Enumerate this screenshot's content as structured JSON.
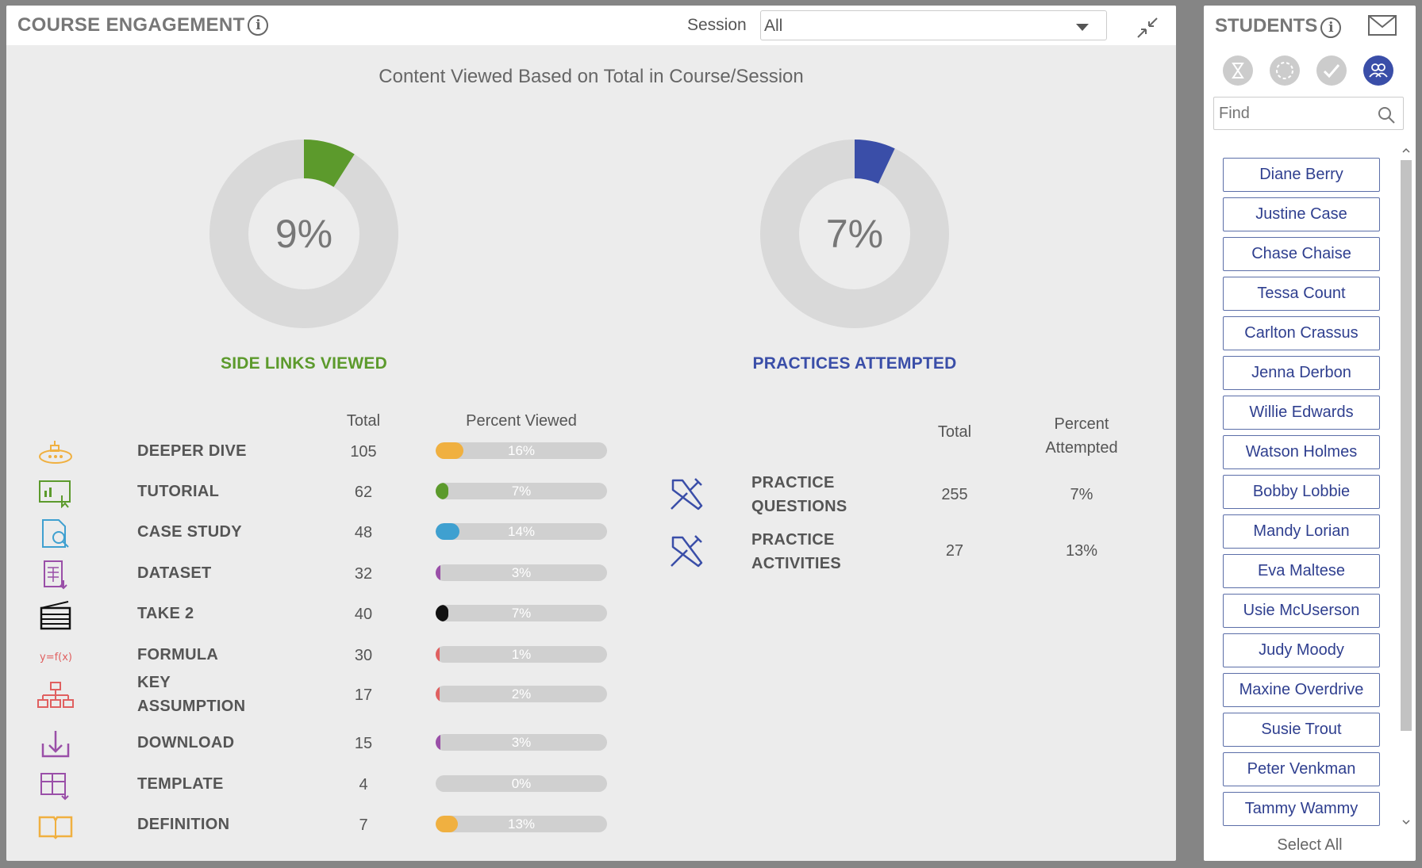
{
  "engagement": {
    "title": "COURSE ENGAGEMENT",
    "session_label": "Session",
    "session_value": "All",
    "chart_title": "Content Viewed Based on Total in Course/Session",
    "donut_left": {
      "value": "9%",
      "fraction": 0.09,
      "label": "SIDE LINKS VIEWED",
      "color": "#5c9a2c"
    },
    "donut_right": {
      "value": "7%",
      "fraction": 0.07,
      "label": "PRACTICES ATTEMPTED",
      "color": "#3a4ea8"
    },
    "table_headers": {
      "total": "Total",
      "percent_viewed": "Percent Viewed"
    },
    "rows": [
      {
        "name": "DEEPER DIVE",
        "total": "105",
        "pct": "16%",
        "fraction": 0.16,
        "color": "#f0b040",
        "icon": "submarine-icon"
      },
      {
        "name": "TUTORIAL",
        "total": "62",
        "pct": "7%",
        "fraction": 0.07,
        "color": "#5c9a2c",
        "icon": "tutorial-icon"
      },
      {
        "name": "CASE STUDY",
        "total": "48",
        "pct": "14%",
        "fraction": 0.14,
        "color": "#3fa0d0",
        "icon": "case-study-icon"
      },
      {
        "name": "DATASET",
        "total": "32",
        "pct": "3%",
        "fraction": 0.03,
        "color": "#9a4fa8",
        "icon": "dataset-icon"
      },
      {
        "name": "TAKE 2",
        "total": "40",
        "pct": "7%",
        "fraction": 0.07,
        "color": "#111111",
        "icon": "clapperboard-icon"
      },
      {
        "name": "FORMULA",
        "total": "30",
        "pct": "1%",
        "fraction": 0.01,
        "color": "#e06060",
        "icon": "formula-icon"
      },
      {
        "name": "KEY ASSUMPTION",
        "total": "17",
        "pct": "2%",
        "fraction": 0.02,
        "color": "#e06060",
        "icon": "hierarchy-icon"
      },
      {
        "name": "DOWNLOAD",
        "total": "15",
        "pct": "3%",
        "fraction": 0.03,
        "color": "#9a4fa8",
        "icon": "download-icon"
      },
      {
        "name": "TEMPLATE",
        "total": "4",
        "pct": "0%",
        "fraction": 0.0,
        "color": "#9a4fa8",
        "icon": "template-icon"
      },
      {
        "name": "DEFINITION",
        "total": "7",
        "pct": "13%",
        "fraction": 0.13,
        "color": "#f0b040",
        "icon": "book-icon"
      }
    ],
    "practice_headers": {
      "total": "Total",
      "percent_line1": "Percent",
      "percent_line2": "Attempted"
    },
    "practices": [
      {
        "line1": "PRACTICE",
        "line2": "QUESTIONS",
        "total": "255",
        "pct": "7%",
        "icon": "tools-icon"
      },
      {
        "line1": "PRACTICE",
        "line2": "ACTIVITIES",
        "total": "27",
        "pct": "13%",
        "icon": "tools-icon"
      }
    ],
    "formula_text": "y=f(x)"
  },
  "students": {
    "title": "STUDENTS",
    "find_placeholder": "Find",
    "select_all": "Select All",
    "names": [
      "Diane Berry",
      "Justine Case",
      "Chase Chaise",
      "Tessa Count",
      "Carlton Crassus",
      "Jenna Derbon",
      "Willie Edwards",
      "Watson Holmes",
      "Bobby Lobbie",
      "Mandy Lorian",
      "Eva Maltese",
      "Usie McUserson",
      "Judy Moody",
      "Maxine Overdrive",
      "Susie Trout",
      "Peter Venkman",
      "Tammy Wammy"
    ]
  }
}
